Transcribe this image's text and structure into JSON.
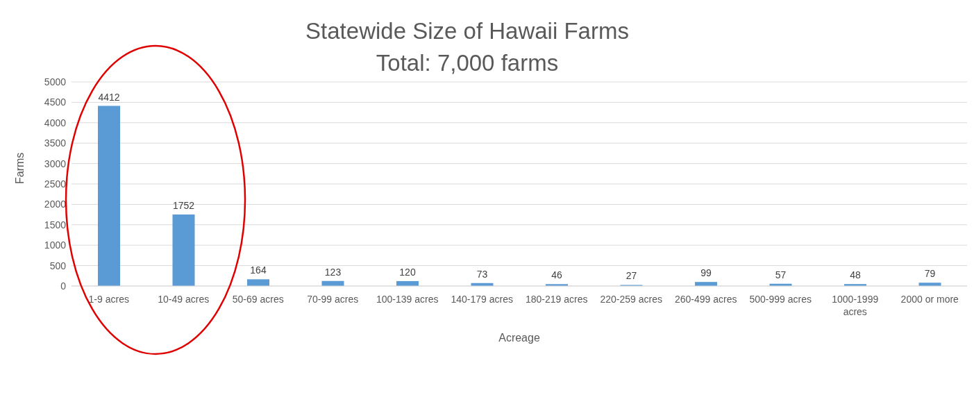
{
  "chart_data": {
    "type": "bar",
    "title": "Statewide Size of Hawaii Farms",
    "subtitle": "Total: 7,000 farms",
    "xlabel": "Acreage",
    "ylabel": "Farms",
    "categories": [
      "1-9 acres",
      "10-49 acres",
      "50-69 acres",
      "70-99 acres",
      "100-139 acres",
      "140-179 acres",
      "180-219 acres",
      "220-259 acres",
      "260-499 acres",
      "500-999 acres",
      "1000-1999 acres",
      "2000 or more"
    ],
    "values": [
      4412,
      1752,
      164,
      123,
      120,
      73,
      46,
      27,
      99,
      57,
      48,
      79
    ],
    "color": "#5b9bd5",
    "ylim": [
      0,
      5000
    ],
    "yticks": [
      0,
      500,
      1000,
      1500,
      2000,
      2500,
      3000,
      3500,
      4000,
      4500,
      5000
    ],
    "grid": "y",
    "data_labels": true
  }
}
